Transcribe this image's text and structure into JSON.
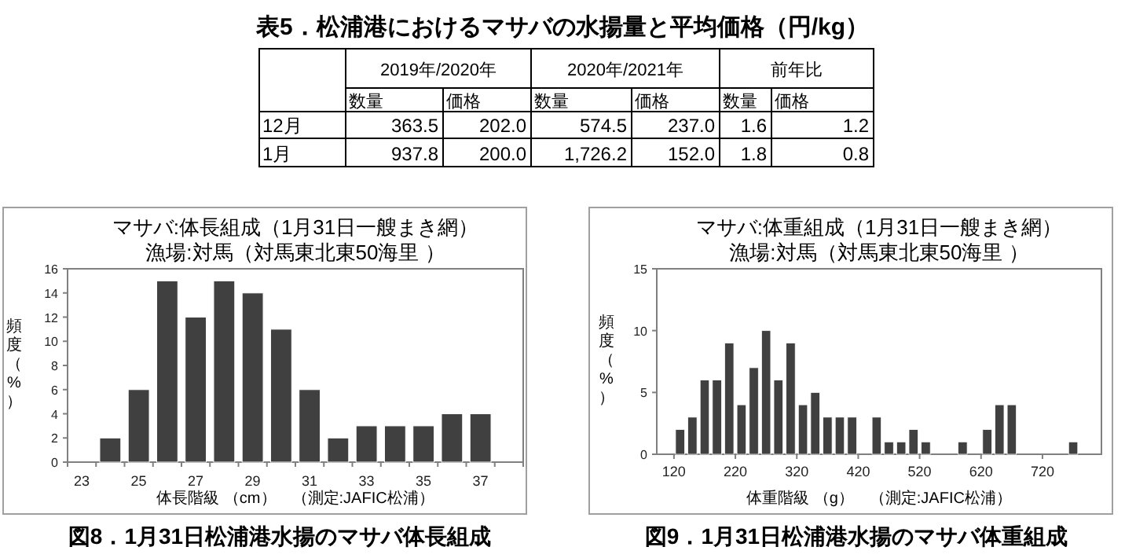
{
  "chart_data": [
    {
      "type": "other",
      "title": "表5．松浦港におけるマサバの水揚量と平均価格（円/kg）",
      "annotations": [
        "2019年/2020年",
        "2020年/2021年",
        "前年比"
      ],
      "categories": [
        "数量",
        "価格",
        "数量",
        "価格",
        "数量",
        "価格"
      ],
      "y_categories": [
        "12月",
        "1月"
      ],
      "cell_labels": [
        [
          "363.5",
          "202.0",
          "574.5",
          "237.0",
          "1.6",
          "1.2"
        ],
        [
          "937.8",
          "200.0",
          "1,726.2",
          "152.0",
          "1.8",
          "0.8"
        ]
      ]
    },
    {
      "type": "bar",
      "title": "マサバ:体長組成（1月31日一艘まき網）",
      "subtitle": "漁場:対馬（対馬東北東50海里 ）",
      "xlabel": "体長階級 （cm）　（測定:JAFIC松浦）",
      "ylabel": "頻度（%）",
      "annotations": [
        "図8．1月31日松浦港水揚のマサバ体長組成"
      ],
      "categories": [
        "23",
        null,
        "25",
        null,
        "27",
        null,
        "29",
        null,
        "31",
        null,
        "33",
        null,
        "35",
        null,
        "37",
        null
      ],
      "values": [
        0,
        2,
        6,
        15,
        12,
        15,
        14,
        11,
        6,
        2,
        3,
        3,
        3,
        4,
        4,
        0
      ],
      "color": "#404040",
      "ylim": [
        0,
        16
      ],
      "yticks": [
        0,
        2,
        4,
        6,
        8,
        10,
        12,
        14,
        16
      ]
    },
    {
      "type": "histogram",
      "title": "マサバ:体重組成（1月31日一艘まき網）",
      "subtitle": "漁場:対馬（対馬東北東50海里 ）",
      "xlabel": "体重階級 （g）　（測定:JAFIC松浦）",
      "ylabel": "頻度（%）",
      "annotations": [
        "図9．1月31日松浦港水揚のマサバ体重組成"
      ],
      "bins": [
        120,
        140,
        160,
        180,
        200,
        220,
        240,
        260,
        280,
        300,
        320,
        340,
        360,
        380,
        400,
        420,
        440,
        460,
        480,
        500,
        520,
        540,
        560,
        580,
        600,
        620,
        640,
        660,
        680,
        700,
        720,
        740,
        760,
        780,
        800
      ],
      "values": [
        2,
        3,
        6,
        6,
        9,
        4,
        7,
        10,
        6,
        9,
        4,
        5,
        3,
        3,
        3,
        0,
        3,
        1,
        1,
        2,
        1,
        0,
        0,
        1,
        0,
        2,
        4,
        4,
        0,
        0,
        0,
        0,
        1,
        0
      ],
      "color": "#404040",
      "xlim": [
        92,
        816
      ],
      "xticks": [
        120,
        220,
        320,
        420,
        520,
        620,
        720
      ],
      "ylim": [
        0,
        15
      ],
      "yticks": [
        0,
        5,
        10,
        15
      ]
    }
  ]
}
